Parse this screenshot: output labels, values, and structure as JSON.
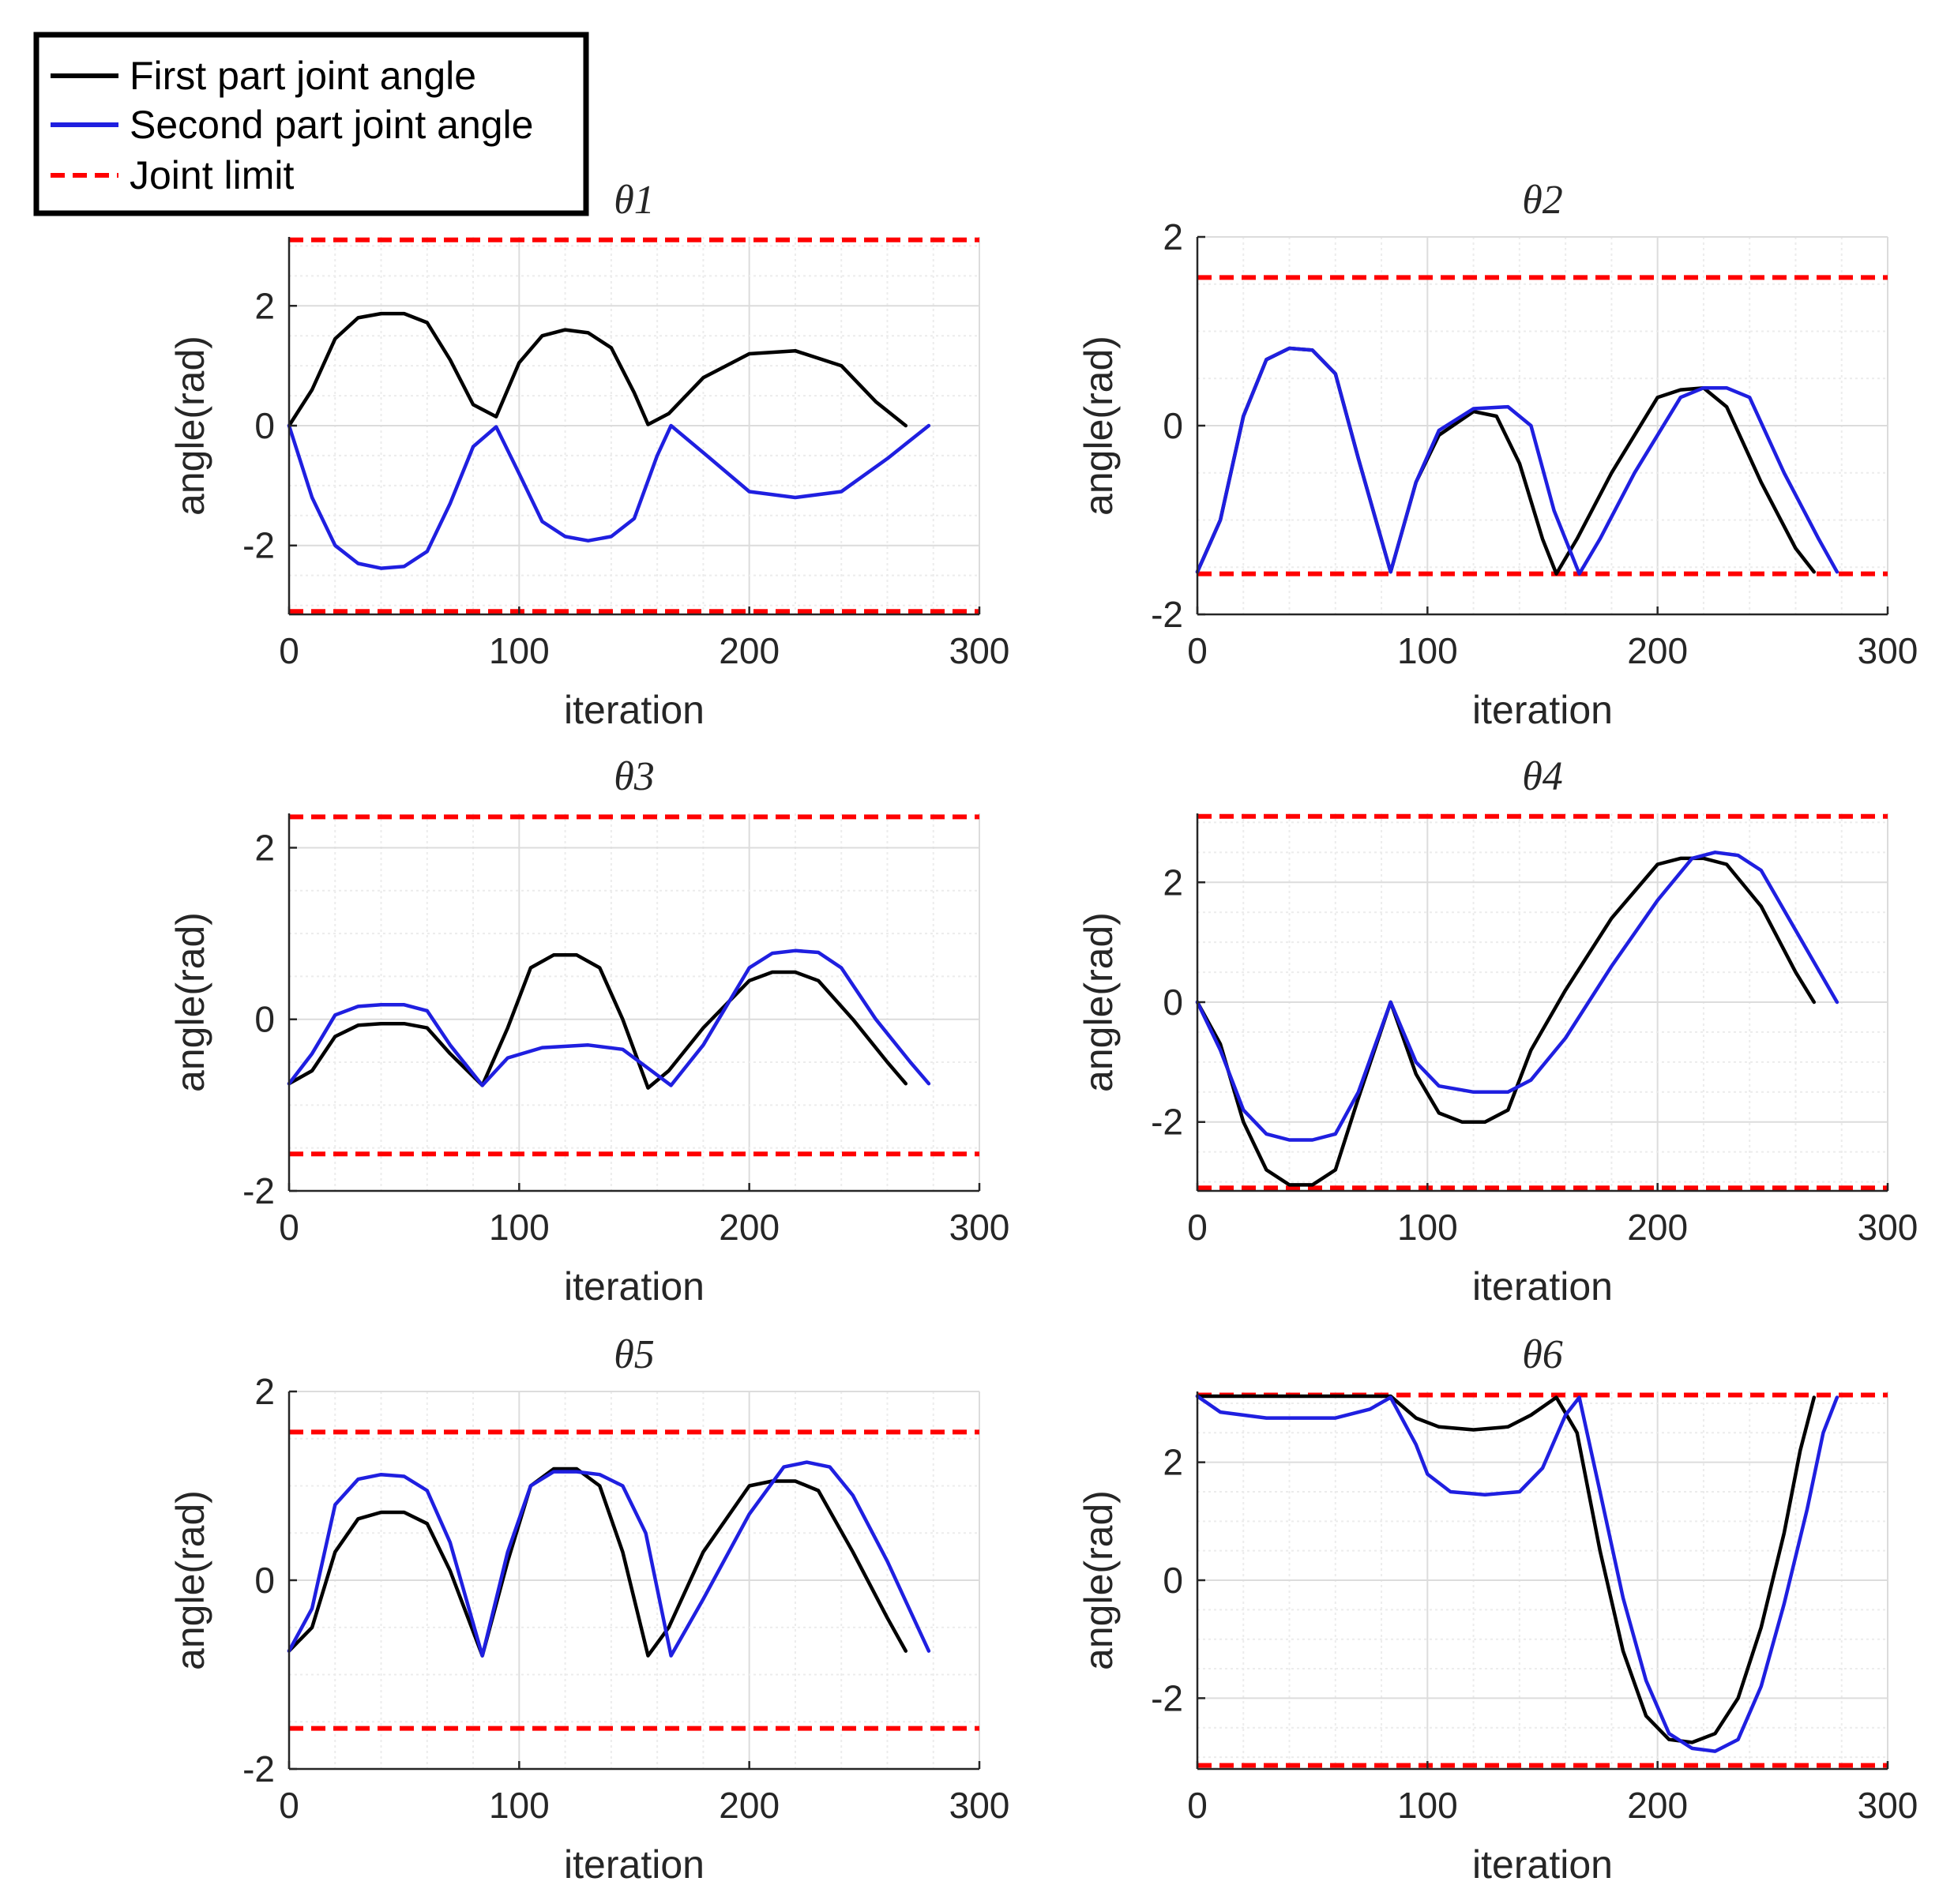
{
  "legend": {
    "entries": [
      {
        "label": "First part joint angle",
        "color": "#000000",
        "style": "solid"
      },
      {
        "label": "Second part joint angle",
        "color": "#1f1fe0",
        "style": "solid"
      },
      {
        "label": "Joint limit",
        "color": "#ff0000",
        "style": "dashed"
      }
    ]
  },
  "chart_data": [
    {
      "type": "line",
      "title": "θ1",
      "xlabel": "iteration",
      "ylabel": "angle(rad)",
      "xlim": [
        0,
        300
      ],
      "ylim": [
        -3.15,
        3.15
      ],
      "xticks": [
        0,
        100,
        200,
        300
      ],
      "yticks": [
        -2,
        0,
        2
      ],
      "grid": true,
      "joint_limits": [
        3.1,
        -3.1
      ],
      "series": [
        {
          "name": "First part joint angle",
          "color": "#000000",
          "x": [
            0,
            10,
            20,
            30,
            40,
            50,
            60,
            70,
            80,
            90,
            100,
            110,
            120,
            130,
            140,
            150,
            156,
            165,
            180,
            200,
            220,
            240,
            255,
            268
          ],
          "y": [
            0,
            0.6,
            1.45,
            1.8,
            1.87,
            1.87,
            1.72,
            1.1,
            0.35,
            0.15,
            1.05,
            1.5,
            1.6,
            1.55,
            1.3,
            0.55,
            0.02,
            0.2,
            0.8,
            1.2,
            1.25,
            1.0,
            0.4,
            0
          ]
        },
        {
          "name": "Second part joint angle",
          "color": "#1f1fe0",
          "x": [
            0,
            10,
            20,
            30,
            40,
            50,
            60,
            70,
            80,
            90,
            100,
            110,
            120,
            130,
            140,
            150,
            160,
            166,
            180,
            200,
            220,
            240,
            260,
            278
          ],
          "y": [
            0,
            -1.2,
            -2.0,
            -2.3,
            -2.38,
            -2.35,
            -2.1,
            -1.3,
            -0.35,
            -0.02,
            -0.8,
            -1.6,
            -1.85,
            -1.92,
            -1.85,
            -1.55,
            -0.5,
            0,
            -0.45,
            -1.1,
            -1.2,
            -1.1,
            -0.55,
            0
          ]
        }
      ]
    },
    {
      "type": "line",
      "title": "θ2",
      "xlabel": "iteration",
      "ylabel": "angle(rad)",
      "xlim": [
        0,
        300
      ],
      "ylim": [
        -2,
        2
      ],
      "xticks": [
        0,
        100,
        200,
        300
      ],
      "yticks": [
        -2,
        0,
        2
      ],
      "grid": true,
      "joint_limits": [
        1.57,
        -1.57
      ],
      "series": [
        {
          "name": "First part joint angle",
          "color": "#000000",
          "x": [
            0,
            10,
            20,
            30,
            40,
            50,
            60,
            70,
            84,
            95,
            105,
            120,
            130,
            140,
            150,
            156,
            165,
            180,
            200,
            210,
            220,
            230,
            245,
            260,
            268
          ],
          "y": [
            -1.55,
            -1.0,
            0.1,
            0.7,
            0.82,
            0.8,
            0.55,
            -0.35,
            -1.55,
            -0.6,
            -0.1,
            0.15,
            0.1,
            -0.4,
            -1.2,
            -1.57,
            -1.2,
            -0.5,
            0.3,
            0.38,
            0.4,
            0.2,
            -0.6,
            -1.3,
            -1.55
          ]
        },
        {
          "name": "Second part joint angle",
          "color": "#1f1fe0",
          "x": [
            0,
            10,
            20,
            30,
            40,
            50,
            60,
            70,
            84,
            95,
            105,
            120,
            135,
            145,
            155,
            166,
            175,
            190,
            210,
            220,
            230,
            240,
            255,
            270,
            278
          ],
          "y": [
            -1.55,
            -1.0,
            0.1,
            0.7,
            0.82,
            0.8,
            0.55,
            -0.35,
            -1.55,
            -0.6,
            -0.05,
            0.18,
            0.2,
            0.0,
            -0.9,
            -1.57,
            -1.2,
            -0.5,
            0.3,
            0.4,
            0.4,
            0.3,
            -0.5,
            -1.2,
            -1.55
          ]
        }
      ]
    },
    {
      "type": "line",
      "title": "θ3",
      "xlabel": "iteration",
      "ylabel": "angle(rad)",
      "xlim": [
        0,
        300
      ],
      "ylim": [
        -2,
        2.4
      ],
      "xticks": [
        0,
        100,
        200,
        300
      ],
      "yticks": [
        -2,
        0,
        2
      ],
      "grid": true,
      "joint_limits": [
        2.36,
        -1.57
      ],
      "series": [
        {
          "name": "First part joint angle",
          "color": "#000000",
          "x": [
            0,
            10,
            20,
            30,
            40,
            50,
            60,
            70,
            84,
            95,
            105,
            115,
            125,
            135,
            145,
            156,
            165,
            180,
            200,
            210,
            220,
            230,
            245,
            260,
            268
          ],
          "y": [
            -0.75,
            -0.6,
            -0.2,
            -0.07,
            -0.05,
            -0.05,
            -0.1,
            -0.4,
            -0.77,
            -0.1,
            0.6,
            0.75,
            0.75,
            0.6,
            0.0,
            -0.8,
            -0.6,
            -0.1,
            0.45,
            0.55,
            0.55,
            0.45,
            0.0,
            -0.5,
            -0.75
          ]
        },
        {
          "name": "Second part joint angle",
          "color": "#1f1fe0",
          "x": [
            0,
            10,
            20,
            30,
            40,
            50,
            60,
            70,
            84,
            95,
            110,
            130,
            145,
            155,
            166,
            180,
            200,
            210,
            220,
            230,
            240,
            255,
            270,
            278
          ],
          "y": [
            -0.75,
            -0.4,
            0.05,
            0.15,
            0.17,
            0.17,
            0.1,
            -0.3,
            -0.77,
            -0.45,
            -0.33,
            -0.3,
            -0.35,
            -0.55,
            -0.77,
            -0.3,
            0.6,
            0.77,
            0.8,
            0.78,
            0.6,
            0.0,
            -0.5,
            -0.75
          ]
        }
      ]
    },
    {
      "type": "line",
      "title": "θ4",
      "xlabel": "iteration",
      "ylabel": "angle(rad)",
      "xlim": [
        0,
        300
      ],
      "ylim": [
        -3.15,
        3.15
      ],
      "xticks": [
        0,
        100,
        200,
        300
      ],
      "yticks": [
        -2,
        0,
        2
      ],
      "grid": true,
      "joint_limits": [
        3.1,
        -3.1
      ],
      "series": [
        {
          "name": "First part joint angle",
          "color": "#000000",
          "x": [
            0,
            10,
            20,
            30,
            40,
            50,
            60,
            70,
            84,
            95,
            105,
            115,
            125,
            135,
            145,
            160,
            180,
            200,
            210,
            220,
            230,
            245,
            260,
            268
          ],
          "y": [
            0,
            -0.7,
            -2.0,
            -2.8,
            -3.05,
            -3.05,
            -2.8,
            -1.6,
            0,
            -1.2,
            -1.85,
            -2.0,
            -2.0,
            -1.8,
            -0.8,
            0.2,
            1.4,
            2.3,
            2.4,
            2.4,
            2.3,
            1.6,
            0.5,
            0
          ]
        },
        {
          "name": "Second part joint angle",
          "color": "#1f1fe0",
          "x": [
            0,
            10,
            20,
            30,
            40,
            50,
            60,
            70,
            84,
            95,
            105,
            120,
            135,
            145,
            160,
            180,
            200,
            215,
            225,
            235,
            245,
            260,
            278
          ],
          "y": [
            0,
            -0.8,
            -1.8,
            -2.2,
            -2.3,
            -2.3,
            -2.2,
            -1.5,
            0,
            -1.0,
            -1.4,
            -1.5,
            -1.5,
            -1.3,
            -0.6,
            0.6,
            1.7,
            2.4,
            2.5,
            2.45,
            2.2,
            1.2,
            0
          ]
        }
      ]
    },
    {
      "type": "line",
      "title": "θ5",
      "xlabel": "iteration",
      "ylabel": "angle(rad)",
      "xlim": [
        0,
        300
      ],
      "ylim": [
        -2,
        2
      ],
      "xticks": [
        0,
        100,
        200,
        300
      ],
      "yticks": [
        -2,
        0,
        2
      ],
      "grid": true,
      "joint_limits": [
        1.57,
        -1.57
      ],
      "series": [
        {
          "name": "First part joint angle",
          "color": "#000000",
          "x": [
            0,
            10,
            20,
            30,
            40,
            50,
            60,
            70,
            84,
            95,
            105,
            115,
            125,
            135,
            145,
            156,
            165,
            180,
            200,
            210,
            220,
            230,
            245,
            260,
            268
          ],
          "y": [
            -0.75,
            -0.5,
            0.3,
            0.65,
            0.72,
            0.72,
            0.6,
            0.1,
            -0.8,
            0.2,
            1.0,
            1.18,
            1.18,
            1.0,
            0.3,
            -0.8,
            -0.5,
            0.3,
            1.0,
            1.05,
            1.05,
            0.95,
            0.3,
            -0.4,
            -0.75
          ]
        },
        {
          "name": "Second part joint angle",
          "color": "#1f1fe0",
          "x": [
            0,
            10,
            20,
            30,
            40,
            50,
            60,
            70,
            84,
            95,
            105,
            115,
            125,
            135,
            145,
            155,
            166,
            180,
            200,
            215,
            225,
            235,
            245,
            260,
            278
          ],
          "y": [
            -0.75,
            -0.3,
            0.8,
            1.07,
            1.12,
            1.1,
            0.95,
            0.4,
            -0.8,
            0.3,
            1.0,
            1.15,
            1.15,
            1.12,
            1.0,
            0.5,
            -0.8,
            -0.2,
            0.7,
            1.2,
            1.25,
            1.2,
            0.9,
            0.2,
            -0.75
          ]
        }
      ]
    },
    {
      "type": "line",
      "title": "θ6",
      "xlabel": "iteration",
      "ylabel": "angle(rad)",
      "xlim": [
        0,
        300
      ],
      "ylim": [
        -3.2,
        3.2
      ],
      "xticks": [
        0,
        100,
        200,
        300
      ],
      "yticks": [
        -2,
        0,
        2
      ],
      "grid": true,
      "joint_limits": [
        3.14,
        -3.14
      ],
      "series": [
        {
          "name": "First part joint angle",
          "color": "#000000",
          "x": [
            0,
            40,
            84,
            95,
            105,
            120,
            135,
            145,
            156,
            165,
            175,
            185,
            195,
            205,
            215,
            225,
            235,
            245,
            255,
            262,
            268
          ],
          "y": [
            3.12,
            3.12,
            3.12,
            2.75,
            2.6,
            2.55,
            2.6,
            2.8,
            3.1,
            2.5,
            0.5,
            -1.2,
            -2.3,
            -2.7,
            -2.75,
            -2.6,
            -2.0,
            -0.8,
            0.8,
            2.2,
            3.1
          ]
        },
        {
          "name": "Second part joint angle",
          "color": "#1f1fe0",
          "x": [
            0,
            10,
            30,
            60,
            75,
            84,
            95,
            100,
            110,
            125,
            140,
            150,
            160,
            166,
            175,
            185,
            195,
            205,
            215,
            225,
            235,
            245,
            255,
            265,
            272,
            278
          ],
          "y": [
            3.12,
            2.85,
            2.75,
            2.75,
            2.9,
            3.1,
            2.3,
            1.8,
            1.5,
            1.45,
            1.5,
            1.9,
            2.8,
            3.1,
            1.5,
            -0.3,
            -1.7,
            -2.6,
            -2.85,
            -2.9,
            -2.7,
            -1.8,
            -0.4,
            1.2,
            2.5,
            3.1
          ]
        }
      ]
    }
  ]
}
